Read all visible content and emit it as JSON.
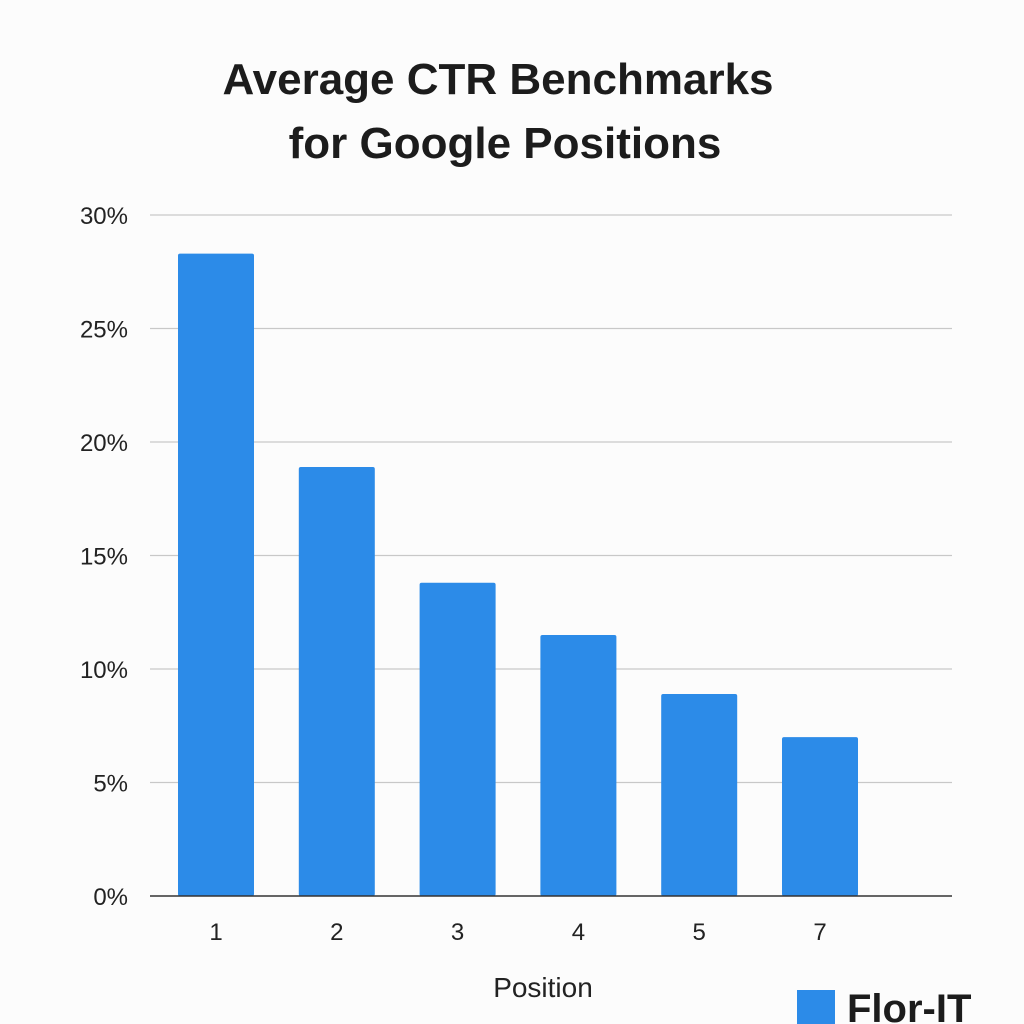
{
  "chart_data": {
    "type": "bar",
    "title_lines": [
      "Average CTR Benchmarks",
      "for Google Positions"
    ],
    "xlabel": "Position",
    "ylabel": "",
    "categories": [
      "1",
      "2",
      "3",
      "4",
      "5",
      "7"
    ],
    "values": [
      28.3,
      18.9,
      13.8,
      11.5,
      8.9,
      7.0
    ],
    "ylim": [
      0,
      30
    ],
    "yticks": [
      0,
      5,
      10,
      15,
      20,
      25,
      30
    ],
    "ytick_labels": [
      "0%",
      "5%",
      "10%",
      "15%",
      "20%",
      "25%",
      "30%"
    ],
    "grid": true,
    "bar_color": "#2c8be8",
    "grid_color": "#c8c8c8",
    "axis_color": "#333333"
  },
  "brand": {
    "name": "Flor-IT",
    "color": "#2c8be8"
  }
}
